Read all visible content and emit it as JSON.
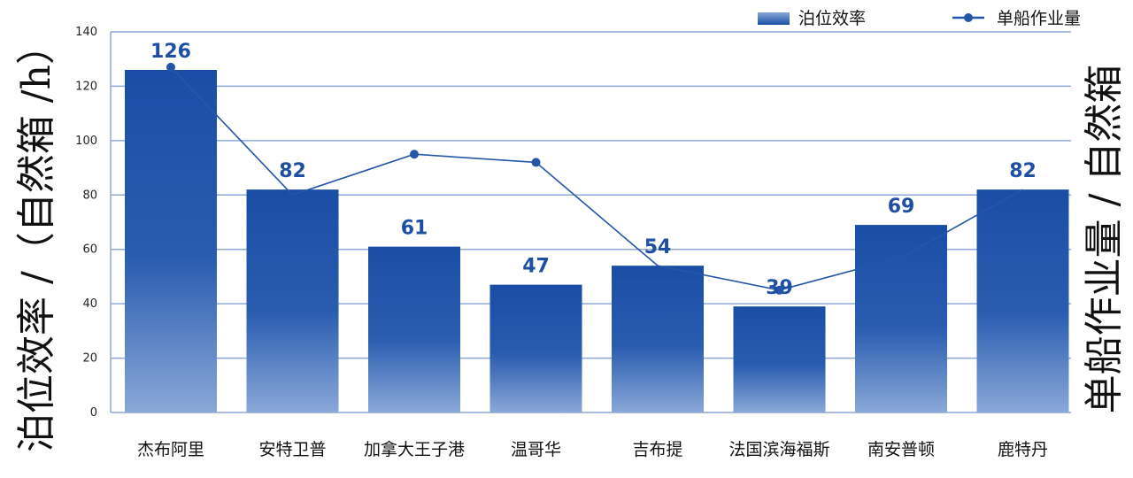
{
  "chart_data": {
    "type": "bar",
    "categories": [
      "杰布阿里",
      "安特卫普",
      "加拿大王子港",
      "温哥华",
      "吉布提",
      "法国滨海福斯",
      "南安普顿",
      "鹿特丹"
    ],
    "series": [
      {
        "name": "泊位效率",
        "type": "bar",
        "values": [
          126,
          82,
          61,
          47,
          54,
          39,
          69,
          82
        ]
      },
      {
        "name": "单船作业量",
        "type": "line",
        "values": [
          127,
          80,
          95,
          92,
          54,
          45,
          57,
          82
        ]
      }
    ],
    "ylabel_left": "泊位效率 /（自然箱 /h）",
    "ylabel_right": "单船作业量 / 自然箱",
    "ylim": [
      0,
      140
    ],
    "yticks": [
      0,
      20,
      40,
      60,
      80,
      100,
      120,
      140
    ],
    "grid": true,
    "legend_position": "top-right",
    "colors": {
      "bar_top": "#1a4ea6",
      "bar_bottom": "#8aa8d8",
      "line": "#2556a8",
      "grid": "#8fa9d6",
      "label": "#1e4fa3"
    }
  }
}
